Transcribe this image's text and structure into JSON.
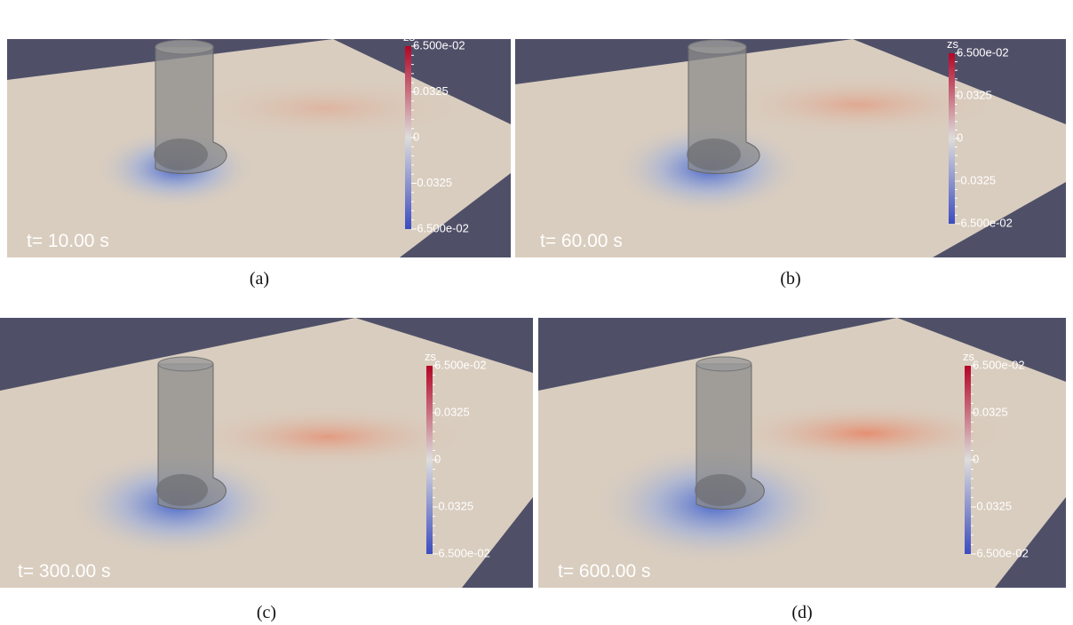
{
  "panels": [
    {
      "caption": "(a)",
      "time": "t= 10.00 s",
      "colorbar": {
        "title": "zs",
        "ticks": [
          "6.500e-02",
          "0.0325",
          "0",
          "-0.0325",
          "-6.500e-02"
        ]
      }
    },
    {
      "caption": "(b)",
      "time": "t= 60.00 s",
      "colorbar": {
        "title": "zs",
        "ticks": [
          "6.500e-02",
          "0.0325",
          "0",
          "-0.0325",
          "-6.500e-02"
        ]
      }
    },
    {
      "caption": "(c)",
      "time": "t= 300.00 s",
      "colorbar": {
        "title": "zs",
        "ticks": [
          "6.500e-02",
          "0.0325",
          "0",
          "-0.0325",
          "-6.500e-02"
        ]
      }
    },
    {
      "caption": "(d)",
      "time": "t= 600.00 s",
      "colorbar": {
        "title": "zs",
        "ticks": [
          "6.500e-02",
          "0.0325",
          "0",
          "-0.0325",
          "-6.500e-02"
        ]
      }
    }
  ]
}
